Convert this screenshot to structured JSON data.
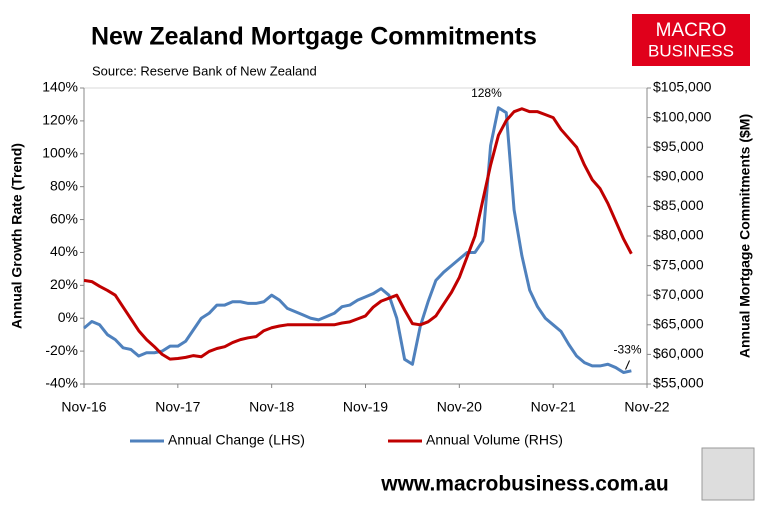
{
  "chart_data": {
    "type": "line",
    "title": "New Zealand Mortgage Commitments",
    "source": "Source: Reserve Bank of New Zealand",
    "logo_text": [
      "MACRO",
      "BUSINESS"
    ],
    "website": "www.macrobusiness.com.au",
    "y_label": "Annual Growth Rate (Trend)",
    "y2_label": "Annual Mortgage Commitments ($M)",
    "categories": [
      "Nov-16",
      null,
      null,
      null,
      null,
      null,
      null,
      null,
      null,
      null,
      null,
      null,
      "Nov-17",
      null,
      null,
      null,
      null,
      null,
      null,
      null,
      null,
      null,
      null,
      null,
      "Nov-18",
      null,
      null,
      null,
      null,
      null,
      null,
      null,
      null,
      null,
      null,
      null,
      "Nov-19",
      null,
      null,
      null,
      null,
      null,
      null,
      null,
      null,
      null,
      null,
      null,
      "Nov-20",
      null,
      null,
      null,
      null,
      null,
      null,
      null,
      null,
      null,
      null,
      null,
      "Nov-21",
      null,
      null,
      null,
      null,
      null,
      null,
      null,
      null,
      null,
      null,
      null,
      "Nov-22"
    ],
    "series": [
      {
        "name": "Annual Change (LHS)",
        "color": "#4f81bd",
        "axis": "y",
        "values": [
          -6,
          -2,
          -4,
          -10,
          -13,
          -18,
          -19,
          -23,
          -21,
          -21,
          -20,
          -17,
          -17,
          -14,
          -7,
          0,
          3,
          8,
          8,
          10,
          10,
          9,
          9,
          10,
          14,
          11,
          6,
          4,
          2,
          0,
          -1,
          1,
          3,
          7,
          8,
          11,
          13,
          15,
          18,
          14,
          0,
          -25,
          -28,
          -5,
          10,
          23,
          28,
          32,
          36,
          40,
          40,
          47,
          105,
          128,
          125,
          66,
          38,
          17,
          7,
          0,
          -4,
          -8,
          -16,
          -23,
          -27,
          -29,
          -29,
          -28,
          -30,
          -33,
          -32,
          null,
          null
        ],
        "value_labels": [
          null,
          null,
          null,
          null,
          null,
          null,
          null,
          null,
          null,
          null,
          null,
          null,
          null,
          null,
          null,
          null,
          null,
          null,
          null,
          null,
          null,
          null,
          null,
          null,
          null,
          null,
          null,
          null,
          null,
          null,
          null,
          null,
          null,
          null,
          null,
          null,
          null,
          null,
          null,
          null,
          null,
          null,
          null,
          null,
          null,
          null,
          null,
          null,
          null,
          null,
          null,
          null,
          null,
          "128%",
          null,
          null,
          null,
          null,
          null,
          null,
          null,
          null,
          null,
          null,
          null,
          null,
          null,
          null,
          null,
          "-33%",
          null,
          null,
          null
        ]
      },
      {
        "name": "Annual Volume (RHS)",
        "color": "#c00000",
        "axis": "y2",
        "values": [
          72500,
          72300,
          71500,
          70800,
          70000,
          68000,
          66000,
          64000,
          62500,
          61300,
          60000,
          59200,
          59300,
          59500,
          59800,
          59600,
          60500,
          61000,
          61300,
          62000,
          62500,
          62800,
          63000,
          64000,
          64500,
          64800,
          65000,
          65000,
          65000,
          65000,
          65000,
          65000,
          65000,
          65300,
          65500,
          66000,
          66500,
          68000,
          69000,
          69500,
          70000,
          67500,
          65200,
          65000,
          65500,
          66500,
          68500,
          70500,
          73000,
          76500,
          80000,
          86000,
          92000,
          97000,
          99500,
          101000,
          101500,
          101000,
          101000,
          100500,
          100000,
          98000,
          96500,
          95000,
          92000,
          89500,
          88000,
          85500,
          82500,
          79500,
          77000,
          null,
          null
        ]
      }
    ],
    "ylim": [
      -40,
      140
    ],
    "yticks": [
      {
        "value": -40,
        "label": "-40%"
      },
      {
        "value": -20,
        "label": "-20%"
      },
      {
        "value": 0,
        "label": "0%"
      },
      {
        "value": 20,
        "label": "20%"
      },
      {
        "value": 40,
        "label": "40%"
      },
      {
        "value": 60,
        "label": "60%"
      },
      {
        "value": 80,
        "label": "80%"
      },
      {
        "value": 100,
        "label": "100%"
      },
      {
        "value": 120,
        "label": "120%"
      },
      {
        "value": 140,
        "label": "140%"
      }
    ],
    "y2lim": [
      55000,
      105000
    ],
    "y2ticks": [
      {
        "value": 55000,
        "label": "$55,000"
      },
      {
        "value": 60000,
        "label": "$60,000"
      },
      {
        "value": 65000,
        "label": "$65,000"
      },
      {
        "value": 70000,
        "label": "$70,000"
      },
      {
        "value": 75000,
        "label": "$75,000"
      },
      {
        "value": 80000,
        "label": "$80,000"
      },
      {
        "value": 85000,
        "label": "$85,000"
      },
      {
        "value": 90000,
        "label": "$90,000"
      },
      {
        "value": 95000,
        "label": "$95,000"
      },
      {
        "value": 100000,
        "label": "$100,000"
      },
      {
        "value": 105000,
        "label": "$105,000"
      }
    ],
    "grid": false,
    "legend": "bottom"
  }
}
